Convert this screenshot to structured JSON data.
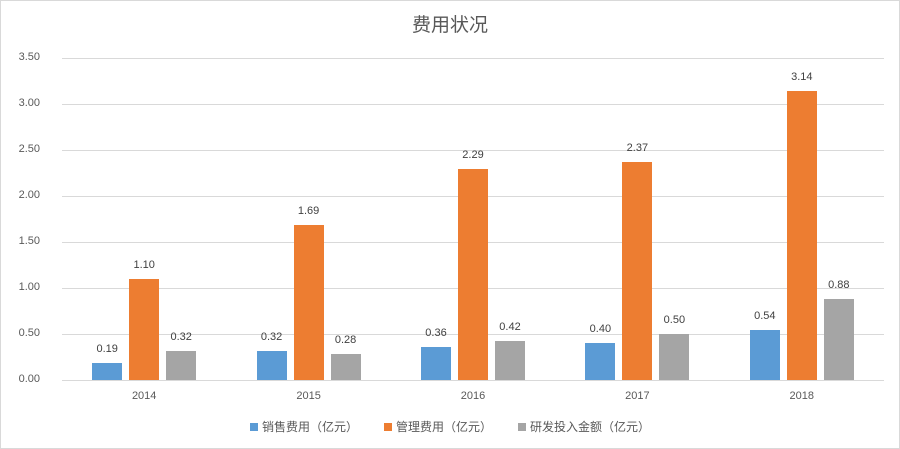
{
  "chart_data": {
    "type": "bar",
    "title": "费用状况",
    "xlabel": "",
    "ylabel": "",
    "ylim": [
      0,
      3.5
    ],
    "yticks": [
      "0.00",
      "0.50",
      "1.00",
      "1.50",
      "2.00",
      "2.50",
      "3.00",
      "3.50"
    ],
    "grid": true,
    "legend_position": "bottom",
    "categories": [
      "2014",
      "2015",
      "2016",
      "2017",
      "2018"
    ],
    "series": [
      {
        "name": "销售费用（亿元）",
        "color": "#5b9bd5",
        "values": [
          0.19,
          0.32,
          0.36,
          0.4,
          0.54
        ],
        "labels": [
          "0.19",
          "0.32",
          "0.36",
          "0.40",
          "0.54"
        ]
      },
      {
        "name": "管理费用（亿元）",
        "color": "#ed7d31",
        "values": [
          1.1,
          1.69,
          2.29,
          2.37,
          3.14
        ],
        "labels": [
          "1.10",
          "1.69",
          "2.29",
          "2.37",
          "3.14"
        ]
      },
      {
        "name": "研发投入金额（亿元）",
        "color": "#a5a5a5",
        "values": [
          0.32,
          0.28,
          0.42,
          0.5,
          0.88
        ],
        "labels": [
          "0.32",
          "0.28",
          "0.42",
          "0.50",
          "0.88"
        ]
      }
    ]
  }
}
